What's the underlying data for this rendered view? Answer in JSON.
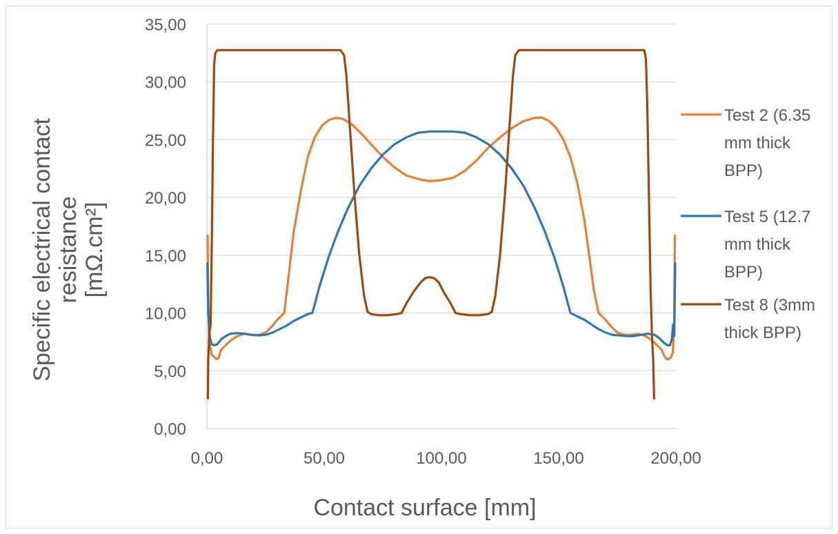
{
  "chart_data": {
    "type": "line",
    "title": "",
    "xlabel": "Contact surface [mm]",
    "ylabel_lines": [
      "Specific electrical contact",
      "resistance",
      "[mΩ.cm²]"
    ],
    "xlim": [
      0,
      200
    ],
    "ylim": [
      0,
      35
    ],
    "x_ticks": [
      0,
      50,
      100,
      150,
      200
    ],
    "x_tick_labels": [
      "0,00",
      "50,00",
      "100,00",
      "150,00",
      "200,00"
    ],
    "y_ticks": [
      0,
      5,
      10,
      15,
      20,
      25,
      30,
      35
    ],
    "y_tick_labels": [
      "0,00",
      "5,00",
      "10,00",
      "15,00",
      "20,00",
      "25,00",
      "30,00",
      "35,00"
    ],
    "grid": "horizontal",
    "legend_position": "right",
    "series": [
      {
        "name": "Test 2 (6.35 mm thick BPP)",
        "legend_lines": [
          "Test 2 (6.35",
          "mm thick",
          "BPP)"
        ],
        "color": "#ED7D31",
        "points": [
          [
            0.3,
            16.7
          ],
          [
            0.6,
            11
          ],
          [
            1,
            7.5
          ],
          [
            2,
            6.4
          ],
          [
            3,
            6.2
          ],
          [
            4,
            6.0
          ],
          [
            5,
            6.1
          ],
          [
            6,
            6.8
          ],
          [
            8,
            7.2
          ],
          [
            10,
            7.6
          ],
          [
            13,
            8.0
          ],
          [
            16,
            8.2
          ],
          [
            19,
            8.1
          ],
          [
            22,
            8.1
          ],
          [
            25,
            8.3
          ],
          [
            28,
            8.9
          ],
          [
            30,
            9.4
          ],
          [
            33,
            10.0
          ],
          [
            35,
            13.5
          ],
          [
            37,
            17.0
          ],
          [
            40,
            20.5
          ],
          [
            43,
            23.5
          ],
          [
            46,
            25.2
          ],
          [
            49,
            26.2
          ],
          [
            52,
            26.7
          ],
          [
            55,
            26.9
          ],
          [
            58,
            26.8
          ],
          [
            62,
            26.3
          ],
          [
            66,
            25.5
          ],
          [
            70,
            24.6
          ],
          [
            75,
            23.5
          ],
          [
            80,
            22.6
          ],
          [
            85,
            21.9
          ],
          [
            90,
            21.6
          ],
          [
            95,
            21.4
          ],
          [
            100,
            21.5
          ],
          [
            105,
            21.7
          ],
          [
            110,
            22.3
          ],
          [
            115,
            23.2
          ],
          [
            120,
            24.3
          ],
          [
            125,
            25.2
          ],
          [
            130,
            26.0
          ],
          [
            135,
            26.6
          ],
          [
            140,
            26.9
          ],
          [
            143,
            26.9
          ],
          [
            146,
            26.6
          ],
          [
            149,
            26.0
          ],
          [
            152,
            25.0
          ],
          [
            155,
            23.5
          ],
          [
            158,
            21.2
          ],
          [
            161,
            18.0
          ],
          [
            163,
            15.0
          ],
          [
            165,
            12.0
          ],
          [
            167,
            10.0
          ],
          [
            170,
            9.4
          ],
          [
            172,
            8.9
          ],
          [
            175,
            8.3
          ],
          [
            178,
            8.1
          ],
          [
            181,
            8.1
          ],
          [
            184,
            8.2
          ],
          [
            187,
            8.0
          ],
          [
            190,
            7.6
          ],
          [
            192,
            7.2
          ],
          [
            194,
            6.8
          ],
          [
            195,
            6.3
          ],
          [
            196,
            6.0
          ],
          [
            197,
            6.0
          ],
          [
            198,
            6.2
          ],
          [
            198.7,
            6.6
          ],
          [
            199.2,
            9.0
          ],
          [
            199.6,
            16.7
          ]
        ]
      },
      {
        "name": "Test 5 (12.7 mm thick BPP)",
        "legend_lines": [
          "Test 5 (12.7",
          "mm thick",
          "BPP)"
        ],
        "color": "#2E75B6",
        "points": [
          [
            0.2,
            14.3
          ],
          [
            0.6,
            10
          ],
          [
            1.2,
            8
          ],
          [
            2,
            7.3
          ],
          [
            3,
            7.2
          ],
          [
            4.5,
            7.3
          ],
          [
            6,
            7.7
          ],
          [
            8,
            8.0
          ],
          [
            10,
            8.2
          ],
          [
            13,
            8.25
          ],
          [
            16,
            8.2
          ],
          [
            19,
            8.1
          ],
          [
            22,
            8.05
          ],
          [
            25,
            8.1
          ],
          [
            28,
            8.3
          ],
          [
            31,
            8.6
          ],
          [
            34,
            8.9
          ],
          [
            37,
            9.3
          ],
          [
            40,
            9.6
          ],
          [
            43,
            9.9
          ],
          [
            45,
            10.0
          ],
          [
            48,
            12.3
          ],
          [
            52,
            14.9
          ],
          [
            56,
            17.1
          ],
          [
            60,
            19.0
          ],
          [
            65,
            21.0
          ],
          [
            70,
            22.5
          ],
          [
            75,
            23.7
          ],
          [
            80,
            24.6
          ],
          [
            85,
            25.2
          ],
          [
            90,
            25.6
          ],
          [
            95,
            25.7
          ],
          [
            100,
            25.7
          ],
          [
            105,
            25.7
          ],
          [
            110,
            25.6
          ],
          [
            115,
            25.2
          ],
          [
            120,
            24.6
          ],
          [
            125,
            23.7
          ],
          [
            130,
            22.5
          ],
          [
            135,
            21.0
          ],
          [
            140,
            19.0
          ],
          [
            144,
            17.1
          ],
          [
            148,
            14.9
          ],
          [
            152,
            12.3
          ],
          [
            155,
            10.0
          ],
          [
            158,
            9.7
          ],
          [
            161,
            9.4
          ],
          [
            164,
            9.0
          ],
          [
            167,
            8.6
          ],
          [
            170,
            8.3
          ],
          [
            173,
            8.1
          ],
          [
            176,
            8.05
          ],
          [
            179,
            8.0
          ],
          [
            182,
            8.0
          ],
          [
            185,
            8.1
          ],
          [
            188,
            8.2
          ],
          [
            191,
            8.1
          ],
          [
            193,
            7.8
          ],
          [
            195,
            7.4
          ],
          [
            196.5,
            7.2
          ],
          [
            197.5,
            7.2
          ],
          [
            198.3,
            7.8
          ],
          [
            198.8,
            9.0
          ],
          [
            199.3,
            8.0
          ],
          [
            199.7,
            14.3
          ]
        ]
      },
      {
        "name": "Test 8 (3mm thick BPP)",
        "legend_lines": [
          "Test 8 (3mm",
          "thick BPP)"
        ],
        "color": "#9E480E",
        "points": [
          [
            0.4,
            2.6
          ],
          [
            0.6,
            6.0
          ],
          [
            1.0,
            8.2
          ],
          [
            1.6,
            9.0
          ],
          [
            2.1,
            16
          ],
          [
            2.6,
            25
          ],
          [
            3.1,
            31.5
          ],
          [
            3.6,
            32.5
          ],
          [
            4.5,
            32.75
          ],
          [
            10,
            32.75
          ],
          [
            30,
            32.75
          ],
          [
            50,
            32.75
          ],
          [
            57,
            32.75
          ],
          [
            58.5,
            32.3
          ],
          [
            59.5,
            30.5
          ],
          [
            61,
            26
          ],
          [
            63,
            20
          ],
          [
            65,
            15
          ],
          [
            67,
            11.5
          ],
          [
            68.5,
            10.1
          ],
          [
            70,
            9.9
          ],
          [
            73,
            9.8
          ],
          [
            77,
            9.8
          ],
          [
            81,
            9.9
          ],
          [
            83,
            10.0
          ],
          [
            85,
            10.8
          ],
          [
            88,
            11.8
          ],
          [
            91,
            12.6
          ],
          [
            93,
            13.0
          ],
          [
            95,
            13.1
          ],
          [
            97,
            13.0
          ],
          [
            99,
            12.6
          ],
          [
            101,
            11.8
          ],
          [
            104,
            10.8
          ],
          [
            106,
            10.0
          ],
          [
            108,
            9.9
          ],
          [
            112,
            9.8
          ],
          [
            116,
            9.8
          ],
          [
            120,
            9.9
          ],
          [
            121.5,
            10.1
          ],
          [
            123,
            11.5
          ],
          [
            125,
            15
          ],
          [
            127,
            20
          ],
          [
            129,
            26
          ],
          [
            130.5,
            30.5
          ],
          [
            131.5,
            32.3
          ],
          [
            133,
            32.75
          ],
          [
            140,
            32.75
          ],
          [
            160,
            32.75
          ],
          [
            180,
            32.75
          ],
          [
            186.5,
            32.75
          ],
          [
            187.2,
            32.0
          ],
          [
            187.8,
            28
          ],
          [
            188.5,
            20
          ],
          [
            189.2,
            12
          ],
          [
            189.8,
            8
          ],
          [
            190.3,
            6
          ],
          [
            190.7,
            2.6
          ]
        ]
      }
    ]
  }
}
